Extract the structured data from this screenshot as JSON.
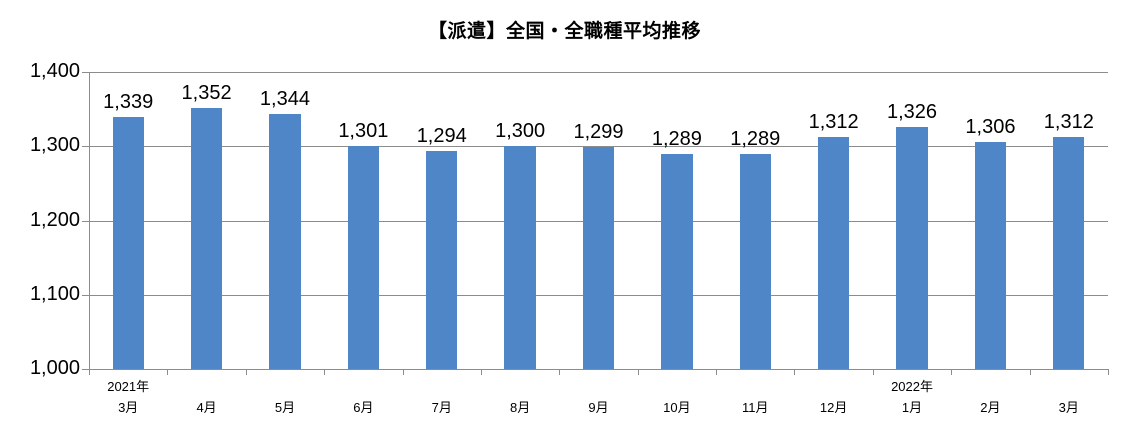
{
  "title": "【派遣】全国・全職種平均推移",
  "colors": {
    "bar": "#4E86C8",
    "gridline": "#8C8C8C",
    "axis": "#8C8C8C",
    "text": "#000000"
  },
  "chart_data": {
    "type": "bar",
    "title": "【派遣】全国・全職種平均推移",
    "categories": [
      "3月",
      "4月",
      "5月",
      "6月",
      "7月",
      "8月",
      "9月",
      "10月",
      "11月",
      "12月",
      "1月",
      "2月",
      "3月"
    ],
    "year_labels": [
      {
        "index": 0,
        "label": "2021年"
      },
      {
        "index": 10,
        "label": "2022年"
      }
    ],
    "values": [
      1339,
      1352,
      1344,
      1301,
      1294,
      1300,
      1299,
      1289,
      1289,
      1312,
      1326,
      1306,
      1312
    ],
    "data_labels": [
      "1,339",
      "1,352",
      "1,344",
      "1,301",
      "1,294",
      "1,300",
      "1,299",
      "1,289",
      "1,289",
      "1,312",
      "1,326",
      "1,306",
      "1,312"
    ],
    "xlabel": "",
    "ylabel": "",
    "ylim": [
      1000,
      1400
    ],
    "ytick_step": 100,
    "ytick_labels": [
      "1,000",
      "1,100",
      "1,200",
      "1,300",
      "1,400"
    ],
    "grid": true,
    "legend": false,
    "data_labels_shown": true
  }
}
